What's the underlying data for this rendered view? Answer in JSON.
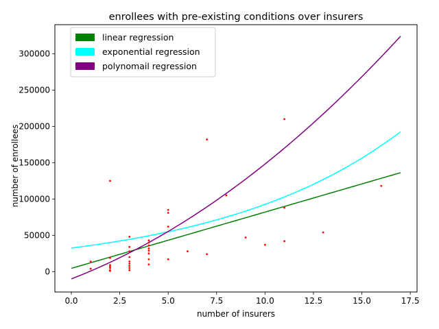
{
  "chart_data": {
    "type": "scatter",
    "title": "enrollees with pre-existing conditions over insurers",
    "xlabel": "number of insurers",
    "ylabel": "number of enrollees",
    "xlim": [
      -0.85,
      17.85
    ],
    "ylim": [
      -28000,
      340000
    ],
    "x_ticks": [
      0.0,
      2.5,
      5.0,
      7.5,
      10.0,
      12.5,
      15.0,
      17.5
    ],
    "x_tick_labels": [
      "0.0",
      "2.5",
      "5.0",
      "7.5",
      "10.0",
      "12.5",
      "15.0",
      "17.5"
    ],
    "y_ticks": [
      0,
      50000,
      100000,
      150000,
      200000,
      250000,
      300000
    ],
    "y_tick_labels": [
      "0",
      "50000",
      "100000",
      "150000",
      "200000",
      "250000",
      "300000"
    ],
    "grid": false,
    "legend_position": "top-left",
    "scatter": {
      "color": "#ff0000",
      "points": [
        [
          1,
          14000
        ],
        [
          1,
          4000
        ],
        [
          2,
          125000
        ],
        [
          2,
          19000
        ],
        [
          2,
          9000
        ],
        [
          2,
          7000
        ],
        [
          2,
          5000
        ],
        [
          2,
          2000
        ],
        [
          2,
          1000
        ],
        [
          3,
          48000
        ],
        [
          3,
          34000
        ],
        [
          3,
          28000
        ],
        [
          3,
          20000
        ],
        [
          3,
          14000
        ],
        [
          3,
          11000
        ],
        [
          3,
          8000
        ],
        [
          3,
          5000
        ],
        [
          3,
          2000
        ],
        [
          4,
          43000
        ],
        [
          4,
          40000
        ],
        [
          4,
          36000
        ],
        [
          4,
          32000
        ],
        [
          4,
          29000
        ],
        [
          4,
          25000
        ],
        [
          4,
          17000
        ],
        [
          4,
          10000
        ],
        [
          5,
          85000
        ],
        [
          5,
          81000
        ],
        [
          5,
          62000
        ],
        [
          5,
          17000
        ],
        [
          6,
          28000
        ],
        [
          7,
          182000
        ],
        [
          7,
          24000
        ],
        [
          8,
          105000
        ],
        [
          9,
          47000
        ],
        [
          10,
          37000
        ],
        [
          11,
          210000
        ],
        [
          11,
          88000
        ],
        [
          11,
          42000
        ],
        [
          13,
          54000
        ],
        [
          16,
          118000
        ]
      ]
    },
    "series": [
      {
        "name": "linear regression",
        "color": "#008000",
        "model": "linear",
        "params": {
          "a": 4500,
          "b": 7750
        },
        "x_range": [
          0,
          17
        ]
      },
      {
        "name": "exponential regression",
        "color": "#00ffff",
        "model": "exponential",
        "params": {
          "a": 32500,
          "k": 0.1047
        },
        "x_range": [
          0,
          17
        ]
      },
      {
        "name": "polynomail regression",
        "color": "#800080",
        "model": "quadratic",
        "params": {
          "a": -10000,
          "b": 10330,
          "c": 548.5
        },
        "x_range": [
          0,
          17
        ]
      }
    ]
  }
}
